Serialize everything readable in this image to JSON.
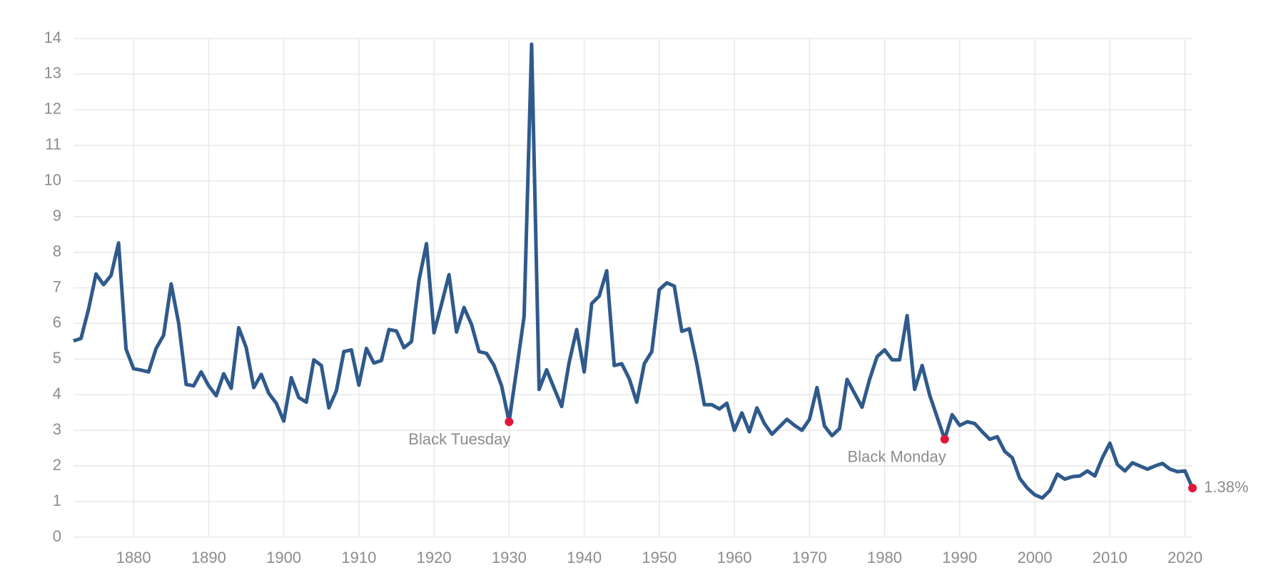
{
  "chart_data": {
    "type": "line",
    "x": [
      1872,
      1873,
      1874,
      1875,
      1876,
      1877,
      1878,
      1879,
      1880,
      1881,
      1882,
      1883,
      1884,
      1885,
      1886,
      1887,
      1888,
      1889,
      1890,
      1891,
      1892,
      1893,
      1894,
      1895,
      1896,
      1897,
      1898,
      1899,
      1900,
      1901,
      1902,
      1903,
      1904,
      1905,
      1906,
      1907,
      1908,
      1909,
      1910,
      1911,
      1912,
      1913,
      1914,
      1915,
      1916,
      1917,
      1918,
      1919,
      1920,
      1921,
      1922,
      1923,
      1924,
      1925,
      1926,
      1927,
      1928,
      1929,
      1930,
      1931,
      1932,
      1933,
      1934,
      1935,
      1936,
      1937,
      1938,
      1939,
      1940,
      1941,
      1942,
      1943,
      1944,
      1945,
      1946,
      1947,
      1948,
      1949,
      1950,
      1951,
      1952,
      1953,
      1954,
      1955,
      1956,
      1957,
      1958,
      1959,
      1960,
      1961,
      1962,
      1963,
      1964,
      1965,
      1966,
      1967,
      1968,
      1969,
      1970,
      1971,
      1972,
      1973,
      1974,
      1975,
      1976,
      1977,
      1978,
      1979,
      1980,
      1981,
      1982,
      1983,
      1984,
      1985,
      1986,
      1987,
      1988,
      1989,
      1990,
      1991,
      1992,
      1993,
      1994,
      1995,
      1996,
      1997,
      1998,
      1999,
      2000,
      2001,
      2002,
      2003,
      2004,
      2005,
      2006,
      2007,
      2008,
      2009,
      2010,
      2011,
      2012,
      2013,
      2014,
      2015,
      2016,
      2017,
      2018,
      2019,
      2020,
      2021
    ],
    "series": [
      {
        "color": "#2f5a8b",
        "marker_color": "#e5153a",
        "values": [
          5.51,
          5.58,
          6.4,
          7.39,
          7.09,
          7.35,
          8.26,
          5.28,
          4.73,
          4.69,
          4.64,
          5.3,
          5.67,
          7.11,
          6.01,
          4.29,
          4.25,
          4.64,
          4.25,
          3.97,
          4.59,
          4.18,
          5.88,
          5.32,
          4.2,
          4.57,
          4.04,
          3.76,
          3.26,
          4.48,
          3.92,
          3.79,
          4.98,
          4.82,
          3.63,
          4.11,
          5.21,
          5.26,
          4.27,
          5.3,
          4.89,
          4.96,
          5.83,
          5.79,
          5.32,
          5.49,
          7.21,
          8.24,
          5.74,
          6.54,
          7.37,
          5.76,
          6.45,
          5.97,
          5.21,
          5.16,
          4.82,
          4.25,
          3.24,
          4.7,
          6.2,
          13.84,
          4.15,
          4.7,
          4.18,
          3.67,
          4.91,
          5.83,
          4.64,
          6.56,
          6.77,
          7.48,
          4.82,
          4.87,
          4.45,
          3.79,
          4.87,
          5.21,
          6.95,
          7.14,
          7.05,
          5.78,
          5.85,
          4.87,
          3.72,
          3.72,
          3.6,
          3.76,
          3.0,
          3.49,
          2.96,
          3.63,
          3.19,
          2.89,
          3.1,
          3.31,
          3.14,
          3.0,
          3.31,
          4.2,
          3.12,
          2.85,
          3.05,
          4.43,
          4.04,
          3.65,
          4.43,
          5.07,
          5.26,
          4.98,
          4.98,
          6.22,
          4.15,
          4.82,
          3.99,
          3.37,
          2.75,
          3.44,
          3.14,
          3.24,
          3.19,
          2.96,
          2.75,
          2.82,
          2.41,
          2.23,
          1.65,
          1.38,
          1.19,
          1.1,
          1.31,
          1.77,
          1.63,
          1.7,
          1.72,
          1.86,
          1.72,
          2.23,
          2.64,
          2.04,
          1.86,
          2.09,
          2.0,
          1.91,
          2.0,
          2.07,
          1.91,
          1.84,
          1.86,
          1.38
        ],
        "value_labels": [
          null,
          null,
          null,
          null,
          null,
          null,
          null,
          null,
          null,
          null,
          null,
          null,
          null,
          null,
          null,
          null,
          null,
          null,
          null,
          null,
          null,
          null,
          null,
          null,
          null,
          null,
          null,
          null,
          null,
          null,
          null,
          null,
          null,
          null,
          null,
          null,
          null,
          null,
          null,
          null,
          null,
          null,
          null,
          null,
          null,
          null,
          null,
          null,
          null,
          null,
          null,
          null,
          null,
          null,
          null,
          null,
          null,
          null,
          null,
          null,
          null,
          null,
          null,
          null,
          null,
          null,
          null,
          null,
          null,
          null,
          null,
          null,
          null,
          null,
          null,
          null,
          null,
          null,
          null,
          null,
          null,
          null,
          null,
          null,
          null,
          null,
          null,
          null,
          null,
          null,
          null,
          null,
          null,
          null,
          null,
          null,
          null,
          null,
          null,
          null,
          null,
          null,
          null,
          null,
          null,
          null,
          null,
          null,
          null,
          null,
          null,
          null,
          null,
          null,
          null,
          null,
          null,
          null,
          null,
          null,
          null,
          null,
          null,
          null,
          null,
          null,
          null,
          null,
          null,
          null,
          null,
          null,
          null,
          null,
          null,
          null,
          null,
          null,
          null,
          null,
          null,
          null,
          null,
          null,
          null,
          null,
          null,
          null,
          null,
          "1.38%"
        ]
      }
    ],
    "annotations": [
      {
        "x": 1930,
        "text": "Black Tuesday"
      },
      {
        "x": 1988,
        "text": "Black Monday"
      }
    ],
    "xlim": [
      1872,
      2021
    ],
    "xticks": [
      1880,
      1890,
      1900,
      1910,
      1920,
      1930,
      1940,
      1950,
      1960,
      1970,
      1980,
      1990,
      2000,
      2010,
      2020
    ],
    "ylim": [
      0,
      14
    ],
    "yticks": [
      0,
      1,
      2,
      3,
      4,
      5,
      6,
      7,
      8,
      9,
      10,
      11,
      12,
      13,
      14
    ],
    "grid": true
  }
}
